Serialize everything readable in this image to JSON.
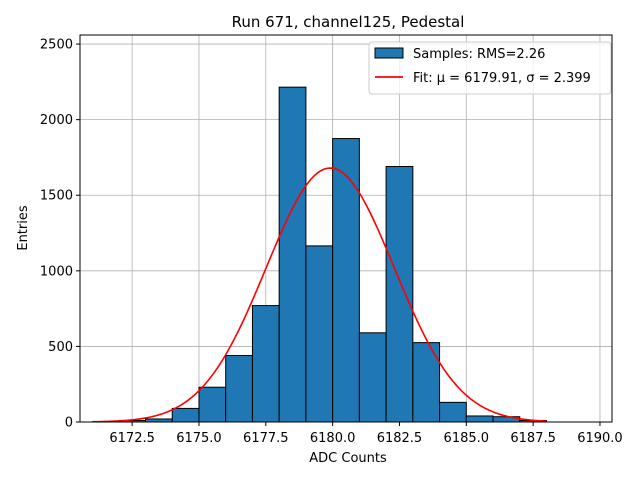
{
  "chart_data": {
    "type": "bar",
    "title": "Run 671, channel125, Pedestal",
    "xlabel": "ADC Counts",
    "ylabel": "Entries",
    "xlim": [
      6170.55,
      6190.45
    ],
    "ylim": [
      0,
      2560
    ],
    "xticks": [
      6172.5,
      6175.0,
      6177.5,
      6180.0,
      6182.5,
      6185.0,
      6187.5,
      6190.0
    ],
    "xtick_labels": [
      "6172.5",
      "6175.0",
      "6177.5",
      "6180.0",
      "6182.5",
      "6185.0",
      "6187.5",
      "6190.0"
    ],
    "yticks": [
      0,
      500,
      1000,
      1500,
      2000,
      2500
    ],
    "ytick_labels": [
      "0",
      "500",
      "1000",
      "1500",
      "2000",
      "2500"
    ],
    "grid": true,
    "legend_position": "top-right",
    "histogram": {
      "name": "Samples: RMS=2.26",
      "color": "#1f77b4",
      "edge_color": "#000000",
      "bin_edges": [
        6172,
        6173,
        6174,
        6175,
        6176,
        6177,
        6178,
        6179,
        6180,
        6181,
        6182,
        6183,
        6184,
        6185,
        6186,
        6187,
        6188
      ],
      "counts": [
        10,
        20,
        90,
        230,
        440,
        770,
        2215,
        1165,
        1875,
        590,
        1690,
        525,
        130,
        40,
        35,
        10
      ]
    },
    "fit": {
      "name": "Fit: μ = 6179.91, σ = 2.399",
      "color": "#ff0000",
      "mu": 6179.91,
      "sigma": 2.399,
      "amplitude": 1680,
      "x_range": [
        6171,
        6188
      ]
    }
  }
}
